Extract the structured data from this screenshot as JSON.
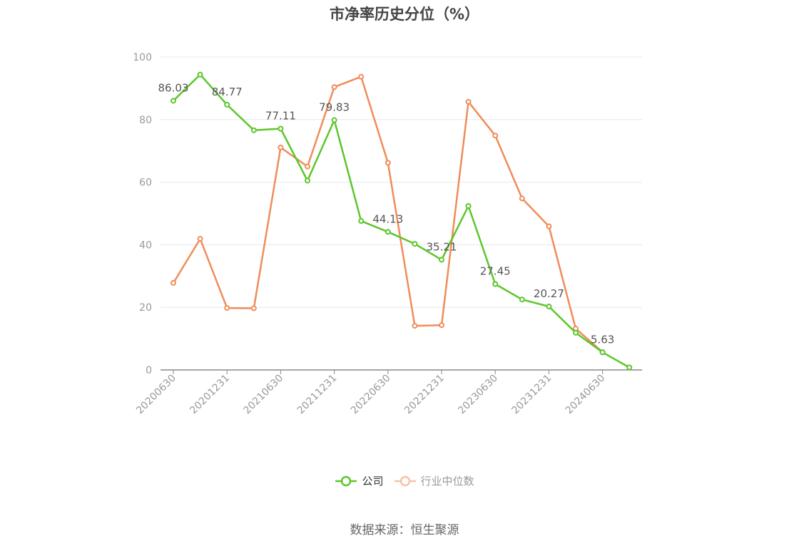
{
  "title": "市净率历史分位（%）",
  "source": "数据来源：恒生聚源",
  "colors": {
    "company": "#5cc72a",
    "industry": "#f08c5a",
    "industry_legend": "#f8c2a6",
    "axis": "#999999",
    "grid": "#e6e8ef",
    "label": "#555555"
  },
  "chart_data": {
    "type": "line",
    "title": "市净率历史分位（%）",
    "x_tick_labels": [
      "20200630",
      "20201231",
      "20210630",
      "20211231",
      "20220630",
      "20221231",
      "20230630",
      "20231231",
      "20240630"
    ],
    "x": [
      "20200630",
      "20200930",
      "20201231",
      "20210331",
      "20210630",
      "20210930",
      "20211231",
      "20220331",
      "20220630",
      "20220930",
      "20221231",
      "20230331",
      "20230630",
      "20230930",
      "20231231",
      "20240331",
      "20240630",
      "20240930"
    ],
    "ylim": [
      0,
      100
    ],
    "y_ticks": [
      0,
      20,
      40,
      60,
      80,
      100
    ],
    "grid": true,
    "legend_position": "bottom",
    "series": [
      {
        "name": "公司",
        "color": "#5cc72a",
        "values": [
          86.03,
          94.4,
          84.77,
          76.6,
          77.11,
          60.5,
          79.83,
          47.6,
          44.13,
          40.3,
          35.21,
          52.4,
          27.45,
          22.5,
          20.27,
          11.9,
          5.63,
          0.8
        ],
        "data_labels": [
          "86.03",
          null,
          "84.77",
          null,
          "77.11",
          null,
          "79.83",
          null,
          "44.13",
          null,
          "35.21",
          null,
          "27.45",
          null,
          "20.27",
          null,
          "5.63",
          null
        ]
      },
      {
        "name": "行业中位数",
        "color": "#f08c5a",
        "values": [
          27.8,
          41.9,
          19.8,
          19.7,
          71.1,
          65.0,
          90.4,
          93.7,
          66.2,
          14.1,
          14.3,
          85.7,
          74.9,
          54.8,
          45.9,
          13.2,
          5.7,
          null
        ],
        "data_labels": []
      }
    ]
  }
}
